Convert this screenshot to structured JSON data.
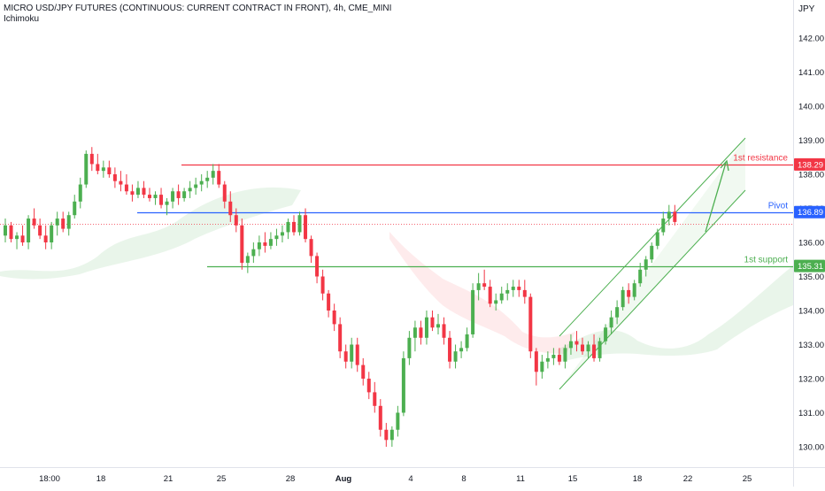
{
  "chart_data": {
    "type": "candlestick",
    "title": "MICRO USD/JPY FUTURES (CONTINUOUS: CURRENT CONTRACT IN FRONT), 4h, CME_MINI",
    "indicator": "Ichimoku",
    "currency": "JPY",
    "ylim": [
      129.7,
      142.6
    ],
    "y_ticks": [
      "142.00",
      "141.00",
      "140.00",
      "139.00",
      "138.00",
      "137.00",
      "136.00",
      "135.00",
      "134.00",
      "133.00",
      "132.00",
      "131.00",
      "130.00"
    ],
    "x_ticks": [
      "18:00",
      "18",
      "21",
      "25",
      "28",
      "Aug",
      "4",
      "8",
      "11",
      "15",
      "18",
      "22",
      "25"
    ],
    "levels": [
      {
        "label": "1st resistance",
        "value": 138.29,
        "price_label": "138.29",
        "color": "#f23645"
      },
      {
        "label": "Pivot",
        "value": 136.89,
        "price_label": "136.89",
        "color": "#2962ff"
      },
      {
        "label": "1st support",
        "value": 135.31,
        "price_label": "135.31",
        "color": "#4caf50"
      }
    ],
    "current_price": 136.55,
    "grid": false,
    "candles": [
      [
        136.2,
        136.7,
        136.0,
        136.5
      ],
      [
        136.5,
        136.6,
        136.0,
        136.1
      ],
      [
        136.1,
        136.3,
        135.8,
        136.2
      ],
      [
        136.2,
        136.5,
        135.9,
        136.0
      ],
      [
        136.0,
        136.8,
        135.8,
        136.7
      ],
      [
        136.7,
        137.0,
        136.4,
        136.5
      ],
      [
        136.5,
        136.7,
        136.1,
        136.2
      ],
      [
        136.2,
        136.5,
        135.8,
        136.0
      ],
      [
        136.0,
        136.6,
        135.8,
        136.5
      ],
      [
        136.5,
        136.9,
        136.2,
        136.7
      ],
      [
        136.7,
        136.9,
        136.3,
        136.4
      ],
      [
        136.4,
        136.9,
        136.2,
        136.8
      ],
      [
        136.8,
        137.4,
        136.7,
        137.2
      ],
      [
        137.2,
        137.9,
        137.0,
        137.7
      ],
      [
        137.7,
        138.7,
        137.6,
        138.6
      ],
      [
        138.6,
        138.8,
        138.1,
        138.3
      ],
      [
        138.3,
        138.6,
        138.0,
        138.1
      ],
      [
        138.1,
        138.4,
        137.9,
        138.2
      ],
      [
        138.2,
        138.4,
        137.9,
        138.0
      ],
      [
        138.0,
        138.2,
        137.6,
        137.8
      ],
      [
        137.8,
        138.1,
        137.5,
        137.7
      ],
      [
        137.7,
        138.0,
        137.4,
        137.5
      ],
      [
        137.5,
        137.7,
        137.2,
        137.4
      ],
      [
        137.4,
        137.8,
        137.3,
        137.6
      ],
      [
        137.6,
        137.8,
        137.3,
        137.4
      ],
      [
        137.4,
        137.6,
        137.2,
        137.3
      ],
      [
        137.3,
        137.5,
        137.1,
        137.4
      ],
      [
        137.4,
        137.6,
        137.0,
        137.1
      ],
      [
        137.1,
        137.3,
        136.8,
        137.2
      ],
      [
        137.2,
        137.6,
        137.0,
        137.5
      ],
      [
        137.5,
        137.7,
        137.1,
        137.3
      ],
      [
        137.3,
        137.6,
        137.2,
        137.5
      ],
      [
        137.5,
        137.8,
        137.3,
        137.6
      ],
      [
        137.6,
        137.9,
        137.4,
        137.7
      ],
      [
        137.7,
        138.0,
        137.5,
        137.8
      ],
      [
        137.8,
        138.1,
        137.6,
        137.9
      ],
      [
        137.9,
        138.3,
        137.7,
        138.1
      ],
      [
        138.1,
        138.3,
        137.6,
        137.7
      ],
      [
        137.7,
        137.8,
        137.0,
        137.2
      ],
      [
        137.2,
        137.5,
        136.6,
        136.8
      ],
      [
        136.8,
        137.0,
        136.3,
        136.5
      ],
      [
        136.5,
        136.7,
        135.2,
        135.4
      ],
      [
        135.4,
        135.7,
        135.1,
        135.6
      ],
      [
        135.6,
        136.0,
        135.4,
        135.8
      ],
      [
        135.8,
        136.2,
        135.6,
        136.0
      ],
      [
        136.0,
        136.3,
        135.7,
        135.9
      ],
      [
        135.9,
        136.3,
        135.8,
        136.1
      ],
      [
        136.1,
        136.4,
        135.9,
        136.2
      ],
      [
        136.2,
        136.5,
        136.0,
        136.3
      ],
      [
        136.3,
        136.7,
        136.1,
        136.6
      ],
      [
        136.6,
        136.8,
        136.2,
        136.3
      ],
      [
        136.3,
        136.9,
        136.2,
        136.8
      ],
      [
        136.8,
        137.0,
        136.0,
        136.1
      ],
      [
        136.1,
        136.2,
        135.4,
        135.6
      ],
      [
        135.6,
        135.7,
        134.8,
        135.0
      ],
      [
        135.0,
        135.2,
        134.3,
        134.5
      ],
      [
        134.5,
        134.6,
        133.8,
        134.0
      ],
      [
        134.0,
        134.2,
        133.4,
        133.6
      ],
      [
        133.6,
        133.8,
        132.6,
        132.8
      ],
      [
        132.8,
        133.0,
        132.3,
        132.5
      ],
      [
        132.5,
        133.2,
        132.3,
        133.0
      ],
      [
        133.0,
        133.2,
        132.2,
        132.4
      ],
      [
        132.4,
        132.6,
        131.8,
        132.0
      ],
      [
        132.0,
        132.2,
        131.4,
        131.6
      ],
      [
        131.6,
        131.9,
        131.0,
        131.2
      ],
      [
        131.2,
        131.4,
        130.3,
        130.5
      ],
      [
        130.5,
        130.7,
        130.0,
        130.2
      ],
      [
        130.2,
        130.6,
        130.0,
        130.5
      ],
      [
        130.5,
        131.2,
        130.3,
        131.0
      ],
      [
        131.0,
        132.8,
        130.9,
        132.6
      ],
      [
        132.6,
        133.4,
        132.4,
        133.2
      ],
      [
        133.2,
        133.7,
        132.8,
        133.5
      ],
      [
        133.5,
        133.7,
        133.0,
        133.2
      ],
      [
        133.2,
        134.0,
        133.0,
        133.8
      ],
      [
        133.8,
        134.0,
        133.4,
        133.5
      ],
      [
        133.5,
        133.9,
        133.3,
        133.6
      ],
      [
        133.6,
        133.8,
        133.0,
        133.2
      ],
      [
        133.2,
        133.4,
        132.3,
        132.5
      ],
      [
        132.5,
        133.0,
        132.3,
        132.8
      ],
      [
        132.8,
        133.1,
        132.6,
        132.9
      ],
      [
        132.9,
        133.5,
        132.8,
        133.3
      ],
      [
        133.3,
        134.8,
        133.2,
        134.6
      ],
      [
        134.6,
        135.1,
        134.3,
        134.8
      ],
      [
        134.8,
        135.2,
        134.6,
        134.7
      ],
      [
        134.7,
        134.9,
        134.1,
        134.2
      ],
      [
        134.2,
        134.5,
        134.0,
        134.3
      ],
      [
        134.3,
        134.7,
        134.2,
        134.5
      ],
      [
        134.5,
        134.8,
        134.3,
        134.6
      ],
      [
        134.6,
        134.9,
        134.4,
        134.7
      ],
      [
        134.7,
        134.9,
        134.4,
        134.6
      ],
      [
        134.6,
        134.9,
        134.2,
        134.4
      ],
      [
        134.4,
        134.5,
        132.6,
        132.8
      ],
      [
        132.8,
        132.9,
        131.8,
        132.2
      ],
      [
        132.2,
        132.7,
        132.0,
        132.5
      ],
      [
        132.5,
        132.8,
        132.3,
        132.6
      ],
      [
        132.6,
        132.9,
        132.4,
        132.7
      ],
      [
        132.7,
        132.9,
        132.4,
        132.5
      ],
      [
        132.5,
        133.0,
        132.3,
        132.9
      ],
      [
        132.9,
        133.3,
        132.7,
        133.1
      ],
      [
        133.1,
        133.4,
        132.8,
        133.0
      ],
      [
        133.0,
        133.2,
        132.7,
        132.8
      ],
      [
        132.8,
        133.1,
        132.6,
        133.0
      ],
      [
        133.0,
        133.3,
        132.5,
        132.6
      ],
      [
        132.6,
        133.2,
        132.5,
        133.1
      ],
      [
        133.1,
        133.6,
        133.0,
        133.5
      ],
      [
        133.5,
        134.0,
        133.3,
        133.8
      ],
      [
        133.8,
        134.3,
        133.6,
        134.1
      ],
      [
        134.1,
        134.7,
        134.0,
        134.6
      ],
      [
        134.6,
        134.8,
        134.2,
        134.4
      ],
      [
        134.4,
        134.9,
        134.3,
        134.8
      ],
      [
        134.8,
        135.4,
        134.7,
        135.2
      ],
      [
        135.2,
        135.6,
        135.0,
        135.5
      ],
      [
        135.5,
        136.0,
        135.4,
        135.9
      ],
      [
        135.9,
        136.4,
        135.8,
        136.3
      ],
      [
        136.3,
        136.9,
        136.2,
        136.7
      ],
      [
        136.7,
        137.1,
        136.5,
        136.9
      ],
      [
        136.9,
        137.1,
        136.5,
        136.6
      ]
    ]
  }
}
